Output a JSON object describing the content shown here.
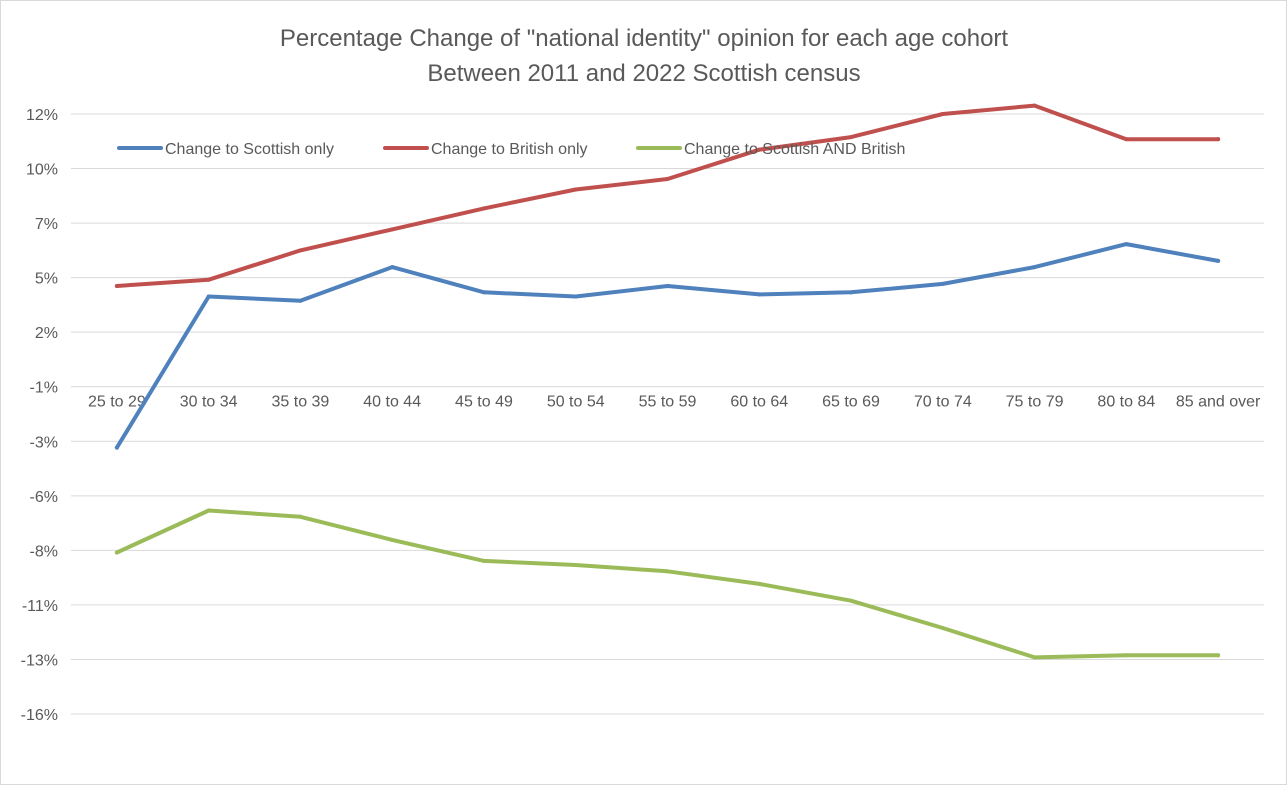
{
  "chart_data": {
    "type": "line",
    "title": "Percentage Change of \"national identity\" opinion for each age cohort",
    "subtitle": "Between 2011 and 2022 Scottish census",
    "categories": [
      "25 to 29",
      "30 to 34",
      "35 to 39",
      "40 to 44",
      "45 to 49",
      "50 to 54",
      "55 to 59",
      "60 to 64",
      "65 to 69",
      "70 to 74",
      "75 to 79",
      "80 to 84",
      "85 and over"
    ],
    "y_ticks": [
      "12%",
      "10%",
      "7%",
      "5%",
      "2%",
      "-1%",
      "-3%",
      "-6%",
      "-8%",
      "-11%",
      "-13%",
      "-16%"
    ],
    "ylim": [
      -16.5,
      12.1
    ],
    "grid": true,
    "legend_position": "top-left",
    "series": [
      {
        "name": "Change to Scottish only",
        "color": "#4f81bd",
        "values": [
          -3.8,
          3.4,
          3.2,
          4.8,
          3.6,
          3.4,
          3.9,
          3.5,
          3.6,
          4.0,
          4.8,
          5.9,
          5.1
        ]
      },
      {
        "name": "Change to British only",
        "color": "#c0504d",
        "values": [
          3.9,
          4.2,
          5.6,
          6.6,
          7.6,
          8.5,
          9.0,
          10.4,
          11.0,
          12.1,
          12.5,
          10.9,
          10.9
        ]
      },
      {
        "name": "Change to Scottish AND British",
        "color": "#9bbb59",
        "values": [
          -8.8,
          -6.8,
          -7.1,
          -8.2,
          -9.2,
          -9.4,
          -9.7,
          -10.3,
          -11.1,
          -12.4,
          -13.8,
          -13.7,
          -13.7
        ]
      }
    ]
  }
}
